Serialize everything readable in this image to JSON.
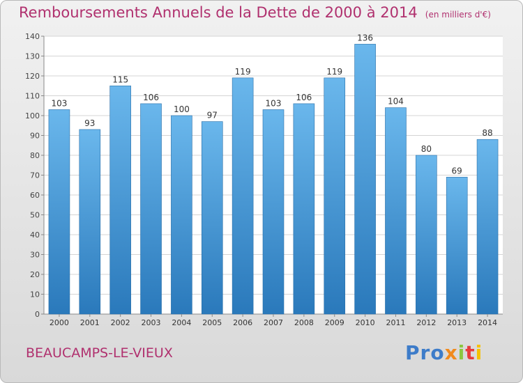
{
  "header": {
    "title": "Remboursements Annuels de la Dette de 2000 à 2014",
    "unit": "(en milliers d'€)"
  },
  "footer": {
    "commune": "BEAUCAMPS-LE-VIEUX",
    "logo": [
      "Pro",
      "x",
      "i",
      "t",
      "i"
    ]
  },
  "colors": {
    "bar_top": "#6ab7ec",
    "bar_bottom": "#2a79bb",
    "title": "#b0306e"
  },
  "chart_data": {
    "type": "bar",
    "categories": [
      "2000",
      "2001",
      "2002",
      "2003",
      "2004",
      "2005",
      "2006",
      "2007",
      "2008",
      "2009",
      "2010",
      "2011",
      "2012",
      "2013",
      "2014"
    ],
    "values": [
      103,
      93,
      115,
      106,
      100,
      97,
      119,
      103,
      106,
      119,
      136,
      104,
      80,
      69,
      88
    ],
    "title": "Remboursements Annuels de la Dette de 2000 à 2014",
    "xlabel": "",
    "ylabel": "",
    "ylim": [
      0,
      140
    ],
    "yticks": [
      0,
      10,
      20,
      30,
      40,
      50,
      60,
      70,
      80,
      90,
      100,
      110,
      120,
      130,
      140
    ],
    "grid": true,
    "data_labels": true
  }
}
